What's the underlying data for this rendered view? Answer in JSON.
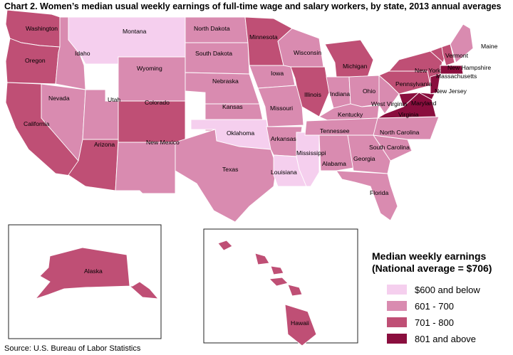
{
  "title": "Chart 2. Women’s median usual weekly earnings of full-time wage and salary workers, by state, 2013 annual averages",
  "source": "Source: U.S. Bureau of Labor Statistics",
  "legend": {
    "title_line1": "Median weekly earnings",
    "title_line2": "(National average = $706)",
    "items": [
      {
        "label": "$600 and below",
        "color": "#f5cfee"
      },
      {
        "label": "601 - 700",
        "color": "#d98bb0"
      },
      {
        "label": "701 - 800",
        "color": "#bf4f75"
      },
      {
        "label": "801 and above",
        "color": "#8a0e3e"
      }
    ]
  },
  "states": {
    "Washington": "701 - 800",
    "Oregon": "701 - 800",
    "California": "701 - 800",
    "Idaho": "601 - 700",
    "Nevada": "601 - 700",
    "Montana": "$600 and below",
    "Wyoming": "601 - 700",
    "Utah": "601 - 700",
    "Colorado": "701 - 800",
    "Arizona": "701 - 800",
    "New Mexico": "601 - 700",
    "North Dakota": "601 - 700",
    "South Dakota": "601 - 700",
    "Nebraska": "601 - 700",
    "Kansas": "601 - 700",
    "Oklahoma": "$600 and below",
    "Texas": "601 - 700",
    "Minnesota": "701 - 800",
    "Iowa": "601 - 700",
    "Missouri": "601 - 700",
    "Arkansas": "601 - 700",
    "Louisiana": "$600 and below",
    "Mississippi": "$600 and below",
    "Wisconsin": "601 - 700",
    "Illinois": "701 - 800",
    "Michigan": "701 - 800",
    "Indiana": "601 - 700",
    "Ohio": "601 - 700",
    "Kentucky": "601 - 700",
    "Tennessee": "601 - 700",
    "Alabama": "601 - 700",
    "Georgia": "601 - 700",
    "Florida": "601 - 700",
    "South Carolina": "601 - 700",
    "North Carolina": "601 - 700",
    "Virginia": "801 and above",
    "West Virginia": "601 - 700",
    "Maryland": "801 and above",
    "Pennsylvania": "701 - 800",
    "New York": "701 - 800",
    "New Jersey": "801 and above",
    "Vermont": "701 - 800",
    "New Hampshire": "701 - 800",
    "Massachusetts": "801 and above",
    "Maine": "601 - 700",
    "Alaska": "701 - 800",
    "Hawaii": "701 - 800"
  }
}
